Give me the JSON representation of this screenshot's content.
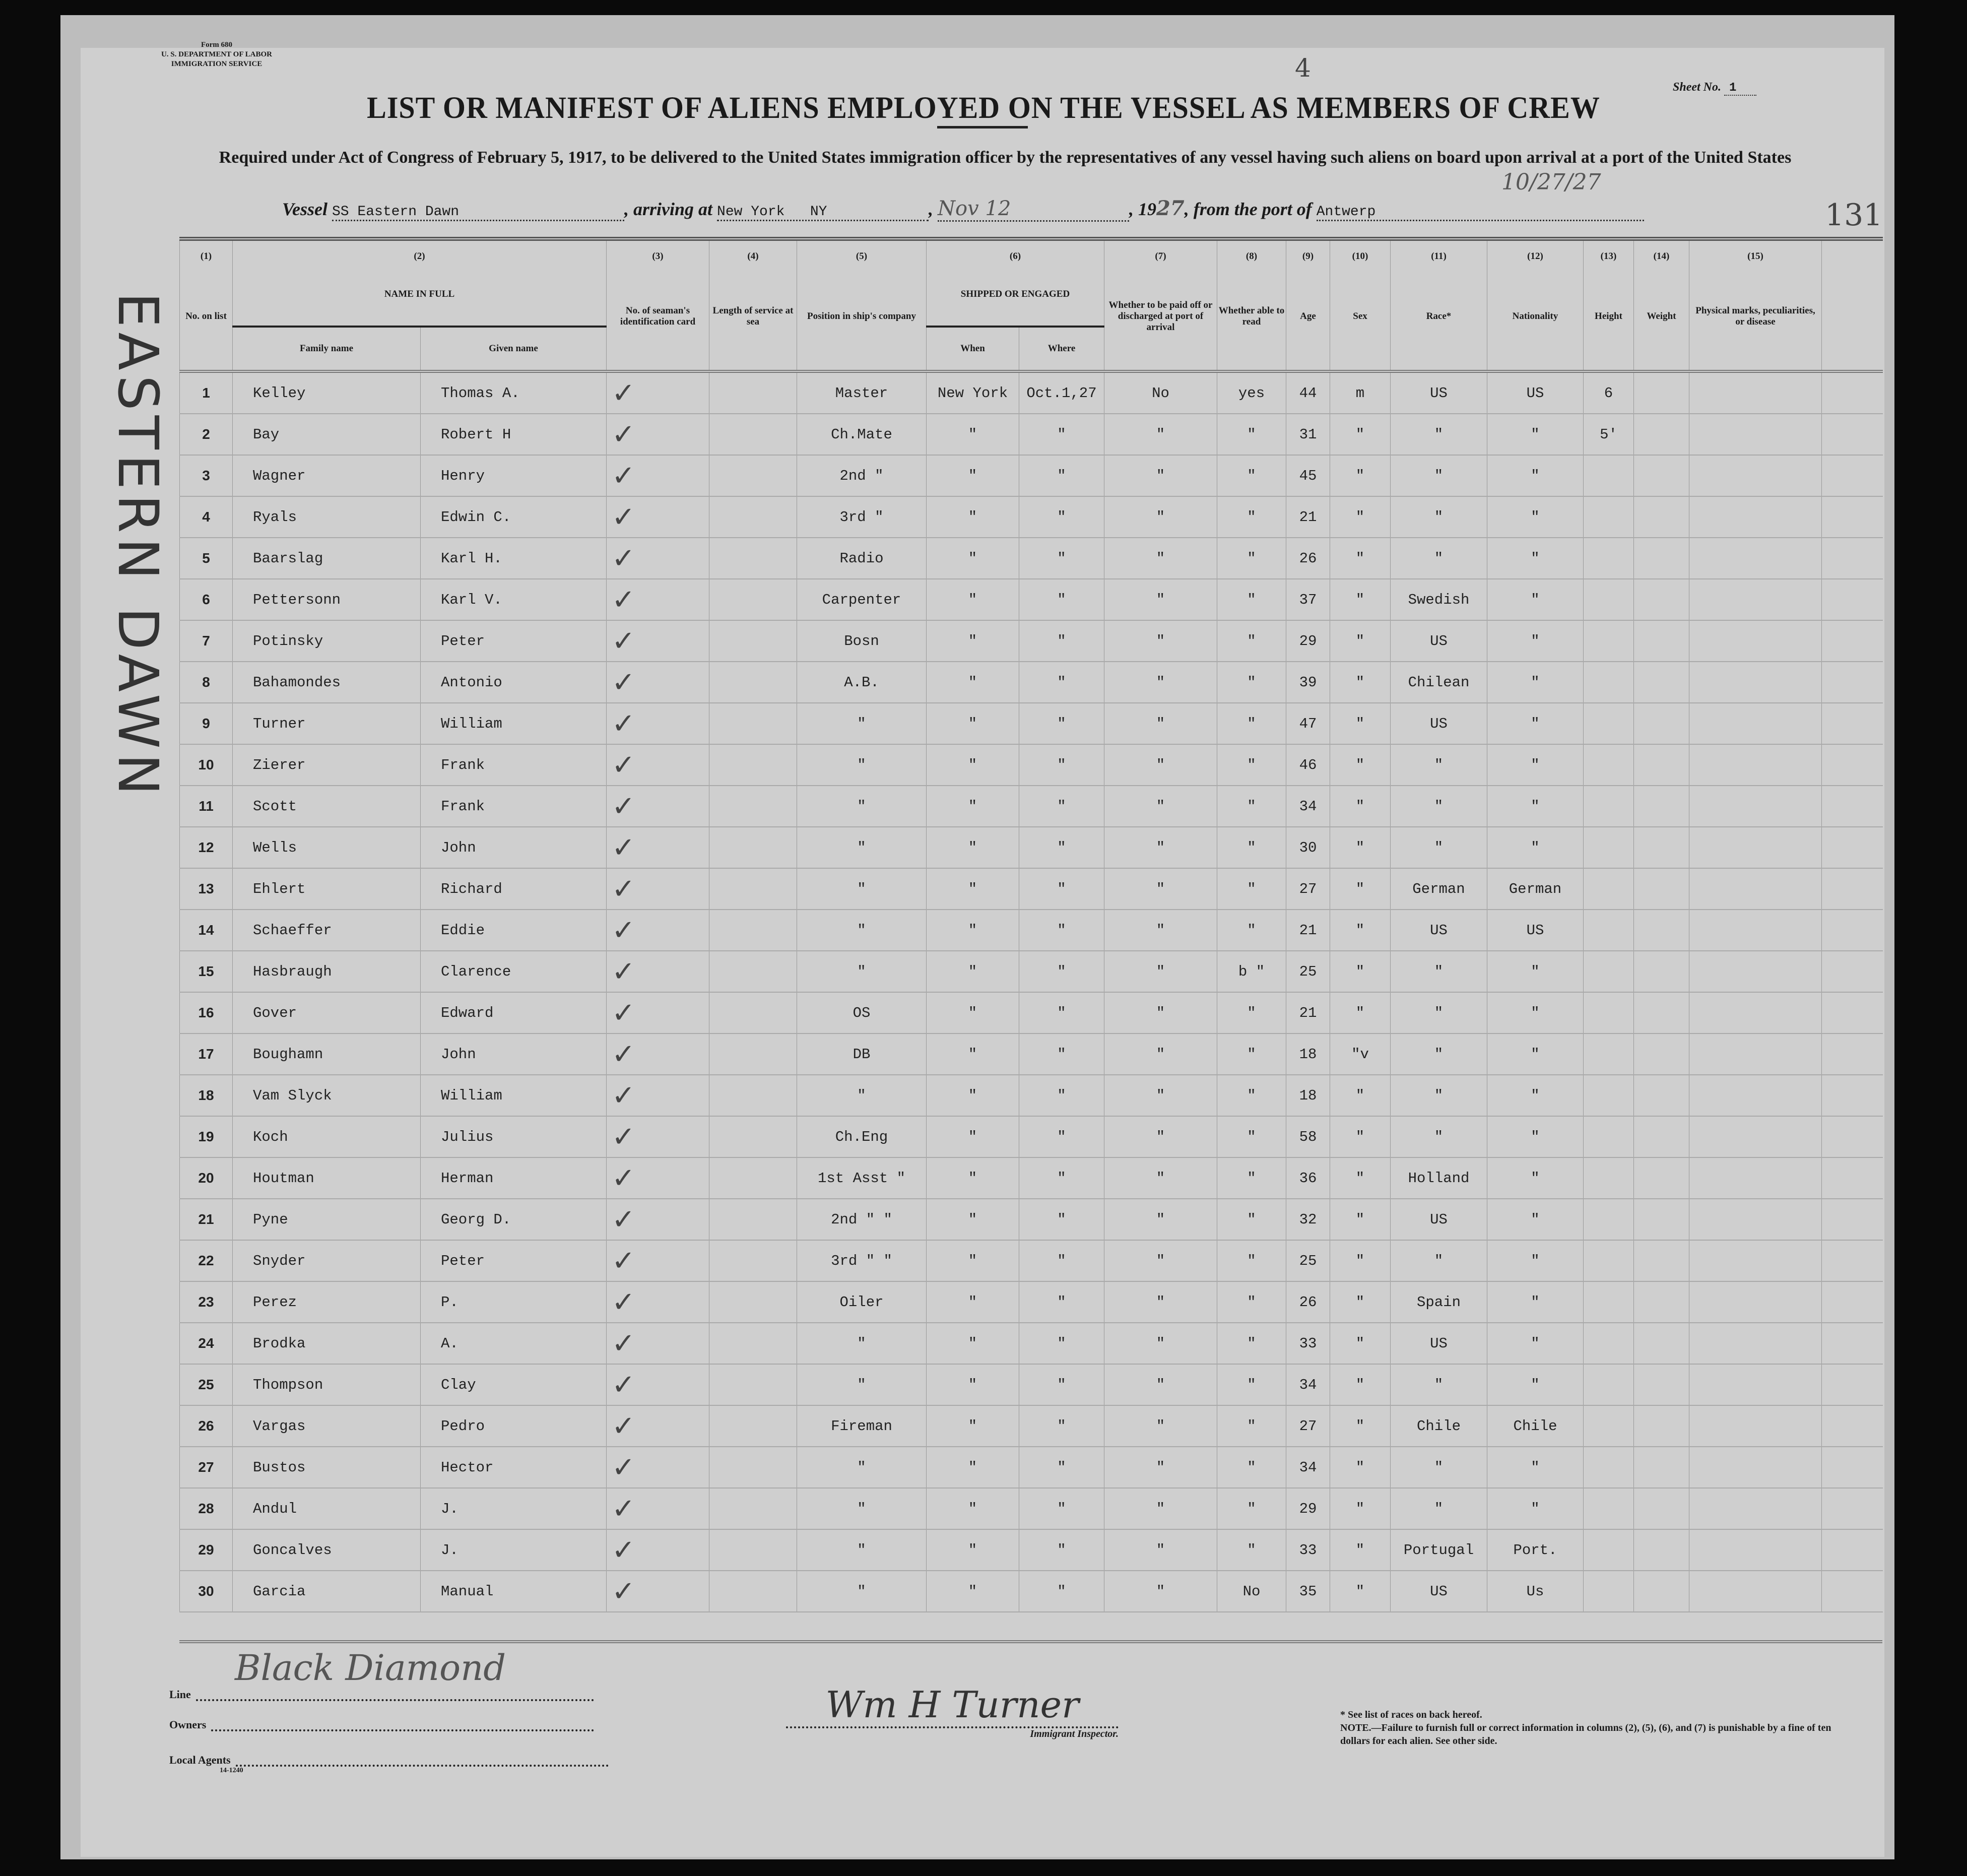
{
  "form": {
    "number": "Form 680",
    "department": "U. S. DEPARTMENT OF LABOR",
    "service": "IMMIGRATION SERVICE",
    "code": "14-1240"
  },
  "title": "LIST OR MANIFEST OF ALIENS EMPLOYED ON THE VESSEL AS MEMBERS OF CREW",
  "subtitle": "Required under Act of Congress of February 5, 1917, to be delivered to the United States immigration officer by the representatives of any vessel having such aliens on board upon arrival at a port of the United States",
  "sheet": {
    "label": "Sheet No.",
    "value": "1"
  },
  "handwritten_top": "4",
  "handwritten_number": "131",
  "margin_name": "EASTERN DAWN",
  "voyage": {
    "vessel_label": "Vessel",
    "vessel": "SS Eastern Dawn",
    "arriving_label": ", arriving at",
    "arriving": "New York   NY",
    "date": "Nov 12",
    "year_prefix": ", 19",
    "year": "27",
    "from_label": ", from the port of",
    "from": "Antwerp",
    "handwritten_date": "10/27/27"
  },
  "columns": {
    "nums": [
      "(1)",
      "(2)",
      "(3)",
      "(4)",
      "(5)",
      "(6)",
      "(7)",
      "(8)",
      "(9)",
      "(10)",
      "(11)",
      "(12)",
      "(13)",
      "(14)",
      "(15)"
    ],
    "no": "No. on list",
    "name": "NAME IN FULL",
    "family": "Family name",
    "given": "Given name",
    "id_card": "No. of seaman's identification card",
    "length": "Length of service at sea",
    "position": "Position in ship's company",
    "shipped": "SHIPPED OR ENGAGED",
    "when": "When",
    "where": "Where",
    "paid": "Whether to be paid off or discharged at port of arrival",
    "read": "Whether able to read",
    "age": "Age",
    "sex": "Sex",
    "race": "Race*",
    "nationality": "Nationality",
    "height": "Height",
    "weight": "Weight",
    "marks": "Physical marks, peculiarities, or disease"
  },
  "rows": [
    {
      "no": "1",
      "family": "Kelley",
      "given": "Thomas A.",
      "pos": "Master",
      "when": "New York",
      "where": "Oct.1,27",
      "paid": "No",
      "read": "yes",
      "age": "44",
      "sex": "m",
      "race": "US",
      "nat": "US",
      "height": "6"
    },
    {
      "no": "2",
      "family": "Bay",
      "given": "Robert H",
      "pos": "Ch.Mate",
      "when": "\"",
      "where": "\"",
      "paid": "\"",
      "read": "\"",
      "age": "31",
      "sex": "\"",
      "race": "\"",
      "nat": "\"",
      "height": "5'"
    },
    {
      "no": "3",
      "family": "Wagner",
      "given": "Henry",
      "pos": "2nd \"",
      "when": "\"",
      "where": "\"",
      "paid": "\"",
      "read": "\"",
      "age": "45",
      "sex": "\"",
      "race": "\"",
      "nat": "\""
    },
    {
      "no": "4",
      "family": "Ryals",
      "given": "Edwin C.",
      "pos": "3rd \"",
      "when": "\"",
      "where": "\"",
      "paid": "\"",
      "read": "\"",
      "age": "21",
      "sex": "\"",
      "race": "\"",
      "nat": "\""
    },
    {
      "no": "5",
      "family": "Baarslag",
      "given": "Karl H.",
      "pos": "Radio",
      "when": "\"",
      "where": "\"",
      "paid": "\"",
      "read": "\"",
      "age": "26",
      "sex": "\"",
      "race": "\"",
      "nat": "\""
    },
    {
      "no": "6",
      "family": "Pettersonn",
      "given": "Karl V.",
      "pos": "Carpenter",
      "when": "\"",
      "where": "\"",
      "paid": "\"",
      "read": "\"",
      "age": "37",
      "sex": "\"",
      "race": "Swedish",
      "nat": "\""
    },
    {
      "no": "7",
      "family": "Potinsky",
      "given": "Peter",
      "pos": "Bosn",
      "when": "\"",
      "where": "\"",
      "paid": "\"",
      "read": "\"",
      "age": "29",
      "sex": "\"",
      "race": "US",
      "nat": "\""
    },
    {
      "no": "8",
      "family": "Bahamondes",
      "given": "Antonio",
      "pos": "A.B.",
      "when": "\"",
      "where": "\"",
      "paid": "\"",
      "read": "\"",
      "age": "39",
      "sex": "\"",
      "race": "Chilean",
      "nat": "\""
    },
    {
      "no": "9",
      "family": "Turner",
      "given": "William",
      "pos": "\"",
      "when": "\"",
      "where": "\"",
      "paid": "\"",
      "read": "\"",
      "age": "47",
      "sex": "\"",
      "race": "US",
      "nat": "\""
    },
    {
      "no": "10",
      "family": "Zierer",
      "given": "Frank",
      "pos": "\"",
      "when": "\"",
      "where": "\"",
      "paid": "\"",
      "read": "\"",
      "age": "46",
      "sex": "\"",
      "race": "\"",
      "nat": "\""
    },
    {
      "no": "11",
      "family": "Scott",
      "given": "Frank",
      "pos": "\"",
      "when": "\"",
      "where": "\"",
      "paid": "\"",
      "read": "\"",
      "age": "34",
      "sex": "\"",
      "race": "\"",
      "nat": "\""
    },
    {
      "no": "12",
      "family": "Wells",
      "given": "John",
      "pos": "\"",
      "when": "\"",
      "where": "\"",
      "paid": "\"",
      "read": "\"",
      "age": "30",
      "sex": "\"",
      "race": "\"",
      "nat": "\""
    },
    {
      "no": "13",
      "family": "Ehlert",
      "given": "Richard",
      "pos": "\"",
      "when": "\"",
      "where": "\"",
      "paid": "\"",
      "read": "\"",
      "age": "27",
      "sex": "\"",
      "race": "German",
      "nat": "German"
    },
    {
      "no": "14",
      "family": "Schaeffer",
      "given": "Eddie",
      "pos": "\"",
      "when": "\"",
      "where": "\"",
      "paid": "\"",
      "read": "\"",
      "age": "21",
      "sex": "\"",
      "race": "US",
      "nat": "US"
    },
    {
      "no": "15",
      "family": "Hasbraugh",
      "given": "Clarence",
      "pos": "\"",
      "when": "\"",
      "where": "\"",
      "paid": "\"",
      "read": "b \"",
      "age": "25",
      "sex": "\"",
      "race": "\"",
      "nat": "\""
    },
    {
      "no": "16",
      "family": "Gover",
      "given": "Edward",
      "pos": "OS",
      "when": "\"",
      "where": "\"",
      "paid": "\"",
      "read": "\"",
      "age": "21",
      "sex": "\"",
      "race": "\"",
      "nat": "\""
    },
    {
      "no": "17",
      "family": "Boughamn",
      "given": "John",
      "pos": "DB",
      "when": "\"",
      "where": "\"",
      "paid": "\"",
      "read": "\"",
      "age": "18",
      "sex": "\"v",
      "race": "\"",
      "nat": "\""
    },
    {
      "no": "18",
      "family": "Vam Slyck",
      "given": "William",
      "pos": "\"",
      "when": "\"",
      "where": "\"",
      "paid": "\"",
      "read": "\"",
      "age": "18",
      "sex": "\"",
      "race": "\"",
      "nat": "\""
    },
    {
      "no": "19",
      "family": "Koch",
      "given": "Julius",
      "pos": "Ch.Eng",
      "when": "\"",
      "where": "\"",
      "paid": "\"",
      "read": "\"",
      "age": "58",
      "sex": "\"",
      "race": "\"",
      "nat": "\""
    },
    {
      "no": "20",
      "family": "Houtman",
      "given": "Herman",
      "pos": "1st Asst \"",
      "when": "\"",
      "where": "\"",
      "paid": "\"",
      "read": "\"",
      "age": "36",
      "sex": "\"",
      "race": "Holland",
      "nat": "\""
    },
    {
      "no": "21",
      "family": "Pyne",
      "given": "Georg D.",
      "pos": "2nd \" \"",
      "when": "\"",
      "where": "\"",
      "paid": "\"",
      "read": "\"",
      "age": "32",
      "sex": "\"",
      "race": "US",
      "nat": "\""
    },
    {
      "no": "22",
      "family": "Snyder",
      "given": "Peter",
      "pos": "3rd \" \"",
      "when": "\"",
      "where": "\"",
      "paid": "\"",
      "read": "\"",
      "age": "25",
      "sex": "\"",
      "race": "\"",
      "nat": "\""
    },
    {
      "no": "23",
      "family": "Perez",
      "given": "P.",
      "pos": "Oiler",
      "when": "\"",
      "where": "\"",
      "paid": "\"",
      "read": "\"",
      "age": "26",
      "sex": "\"",
      "race": "Spain",
      "nat": "\""
    },
    {
      "no": "24",
      "family": "Brodka",
      "given": "A.",
      "pos": "\"",
      "when": "\"",
      "where": "\"",
      "paid": "\"",
      "read": "\"",
      "age": "33",
      "sex": "\"",
      "race": "US",
      "nat": "\""
    },
    {
      "no": "25",
      "family": "Thompson",
      "given": "Clay",
      "pos": "\"",
      "when": "\"",
      "where": "\"",
      "paid": "\"",
      "read": "\"",
      "age": "34",
      "sex": "\"",
      "race": "\"",
      "nat": "\""
    },
    {
      "no": "26",
      "family": "Vargas",
      "given": "Pedro",
      "pos": "Fireman",
      "when": "\"",
      "where": "\"",
      "paid": "\"",
      "read": "\"",
      "age": "27",
      "sex": "\"",
      "race": "Chile",
      "nat": "Chile"
    },
    {
      "no": "27",
      "family": "Bustos",
      "given": "Hector",
      "pos": "\"",
      "when": "\"",
      "where": "\"",
      "paid": "\"",
      "read": "\"",
      "age": "34",
      "sex": "\"",
      "race": "\"",
      "nat": "\""
    },
    {
      "no": "28",
      "family": "Andul",
      "given": "J.",
      "pos": "\"",
      "when": "\"",
      "where": "\"",
      "paid": "\"",
      "read": "\"",
      "age": "29",
      "sex": "\"",
      "race": "\"",
      "nat": "\""
    },
    {
      "no": "29",
      "family": "Goncalves",
      "given": "J.",
      "pos": "\"",
      "when": "\"",
      "where": "\"",
      "paid": "\"",
      "read": "\"",
      "age": "33",
      "sex": "\"",
      "race": "Portugal",
      "nat": "Port."
    },
    {
      "no": "30",
      "family": "Garcia",
      "given": "Manual",
      "pos": "\"",
      "when": "\"",
      "where": "\"",
      "paid": "\"",
      "read": "No",
      "age": "35",
      "sex": "\"",
      "race": "US",
      "nat": "Us"
    }
  ],
  "footer": {
    "line_label": "Line",
    "line_value": "Black Diamond",
    "owners_label": "Owners",
    "agents_label": "Local Agents",
    "code": "14-1240",
    "signature": "Wm H Turner",
    "inspector_label": "Immigrant Inspector.",
    "races_note": "* See list of races on back hereof.",
    "note": "NOTE.—Failure to furnish full or correct information in columns (2), (5), (6), and (7) is punishable by a fine of ten dollars for each alien. See other side."
  }
}
